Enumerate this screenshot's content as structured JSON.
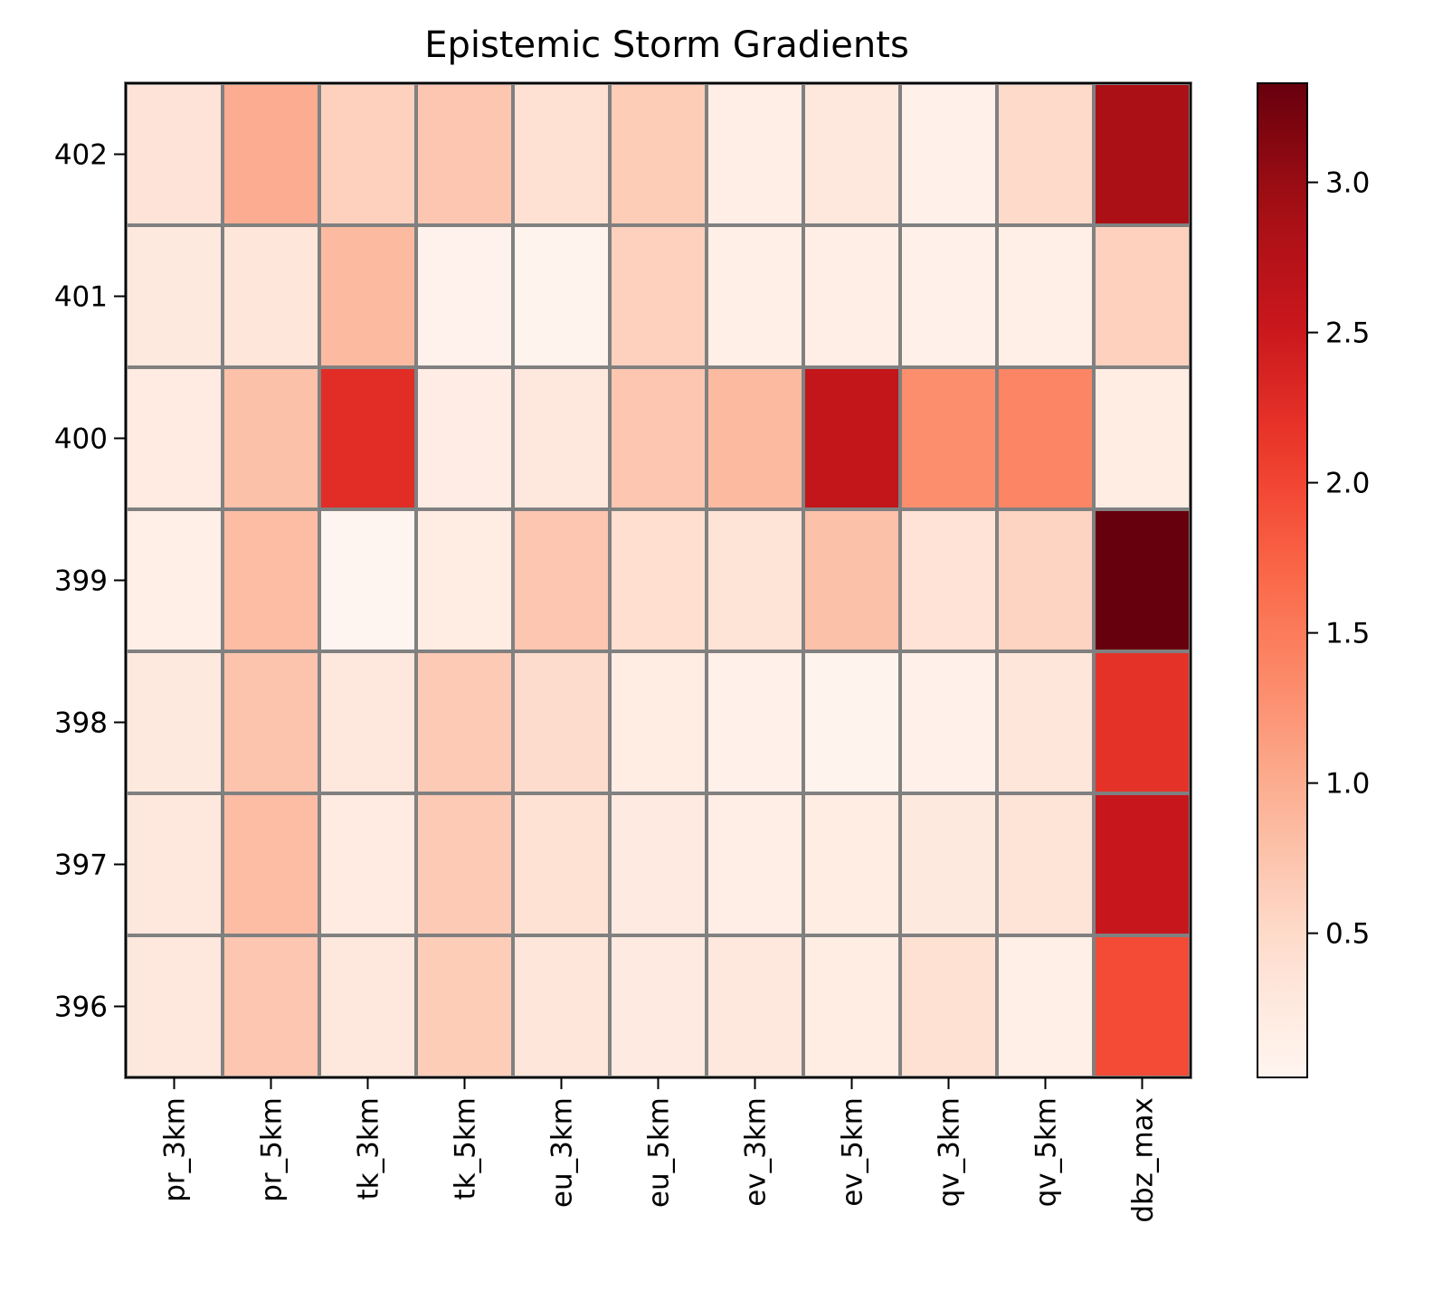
{
  "chart_data": {
    "type": "heatmap",
    "title": "Epistemic Storm Gradients",
    "xlabel": "",
    "ylabel": "",
    "x_categories": [
      "pr_3km",
      "pr_5km",
      "tk_3km",
      "tk_5km",
      "eu_3km",
      "eu_5km",
      "ev_3km",
      "ev_5km",
      "qv_3km",
      "qv_5km",
      "dbz_max"
    ],
    "y_categories": [
      "402",
      "401",
      "400",
      "399",
      "398",
      "397",
      "396"
    ],
    "values": [
      [
        0.35,
        1.0,
        0.6,
        0.72,
        0.42,
        0.65,
        0.16,
        0.28,
        0.1,
        0.5,
        2.85
      ],
      [
        0.25,
        0.32,
        0.85,
        0.08,
        0.05,
        0.6,
        0.14,
        0.16,
        0.12,
        0.14,
        0.6
      ],
      [
        0.22,
        0.78,
        2.25,
        0.17,
        0.27,
        0.72,
        0.85,
        2.6,
        1.3,
        1.4,
        0.18
      ],
      [
        0.14,
        0.82,
        0.02,
        0.18,
        0.72,
        0.45,
        0.36,
        0.78,
        0.38,
        0.58,
        3.33
      ],
      [
        0.26,
        0.75,
        0.3,
        0.68,
        0.48,
        0.18,
        0.12,
        0.06,
        0.1,
        0.32,
        2.2
      ],
      [
        0.28,
        0.82,
        0.22,
        0.68,
        0.4,
        0.24,
        0.16,
        0.2,
        0.26,
        0.36,
        2.55
      ],
      [
        0.3,
        0.72,
        0.28,
        0.65,
        0.32,
        0.24,
        0.3,
        0.18,
        0.42,
        0.14,
        1.95
      ]
    ],
    "colormap": "Reds",
    "vmin": 0.02,
    "vmax": 3.33,
    "colorbar_ticks": [
      0.5,
      1.0,
      1.5,
      2.0,
      2.5,
      3.0
    ],
    "cell_border_color": "#808080",
    "grid": false
  }
}
